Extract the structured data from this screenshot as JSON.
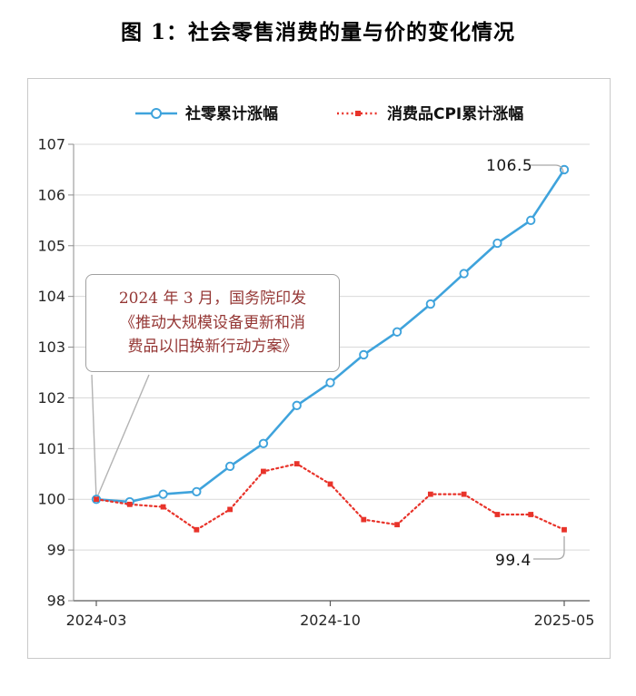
{
  "page_title": "图 1：社会零售消费的量与价的变化情况",
  "chart_data": {
    "type": "line",
    "x": [
      "2024-03",
      "2024-04",
      "2024-05",
      "2024-06",
      "2024-07",
      "2024-08",
      "2024-09",
      "2024-10",
      "2024-11",
      "2024-12",
      "2025-01",
      "2025-02",
      "2025-03",
      "2025-04",
      "2025-05"
    ],
    "x_tick_labels": [
      "2024-03",
      "2024-10",
      "2025-05"
    ],
    "x_tick_indices": [
      0,
      7,
      14
    ],
    "ylim": [
      98,
      107
    ],
    "y_tick_step": 1,
    "grid": true,
    "legend_position": "top",
    "series": [
      {
        "name": "社零累计涨幅",
        "color": "#3FA3DC",
        "line_style": "solid",
        "marker": "circle",
        "values": [
          100.0,
          99.95,
          100.1,
          100.15,
          100.65,
          101.1,
          101.85,
          102.3,
          102.85,
          103.3,
          103.85,
          104.45,
          105.05,
          105.5,
          106.5
        ]
      },
      {
        "name": "消费品CPI累计涨幅",
        "color": "#E8332A",
        "line_style": "dotted",
        "marker": "square",
        "values": [
          100.0,
          99.9,
          99.85,
          99.4,
          99.8,
          100.55,
          100.7,
          100.3,
          99.6,
          99.5,
          100.1,
          100.1,
          99.7,
          99.7,
          99.4
        ]
      }
    ],
    "end_labels": {
      "blue": "106.5",
      "red": "99.4"
    },
    "annotation": {
      "lines": [
        "2024 年 3 月，国务院印发",
        "《推动大规模设备更新和消",
        "费品以旧换新行动方案》"
      ],
      "target": "first-point"
    }
  },
  "colors": {
    "grid": "#D9D9D9",
    "axis": "#595959",
    "axis_light": "#8C8C8C",
    "tick_text": "#262626",
    "legend_text": "#111111",
    "annotation_text": "#953735",
    "annotation_border": "#A0A0A0",
    "callout_line": "#B3B3B3",
    "leader_line": "#A8A8A8",
    "chart_border": "#C9C9C9"
  }
}
